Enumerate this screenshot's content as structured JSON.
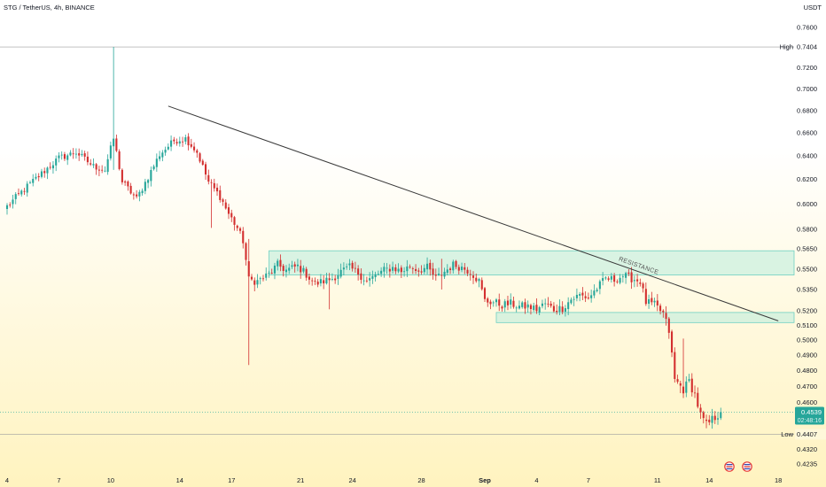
{
  "header": {
    "symbol_line": "STG / TetherUS, 4h, BINANCE",
    "currency": "USDT"
  },
  "colors": {
    "up": "#26a69a",
    "down": "#d32f2f",
    "box_fill": "#b9eddc",
    "box_stroke": "#6fd0c2",
    "trendline": "#3a3a3a",
    "bg_top": "#ffffff",
    "bg_bottom": "#fff3bf"
  },
  "chart_data": {
    "type": "candlestick",
    "y_axis": {
      "min": 0.4235,
      "max": 0.7604,
      "scale": "log",
      "ticks": [
        "0.7600",
        "0.7200",
        "0.7000",
        "0.6800",
        "0.6600",
        "0.6400",
        "0.6200",
        "0.6000",
        "0.5800",
        "0.5650",
        "0.5500",
        "0.5350",
        "0.5200",
        "0.5100",
        "0.5000",
        "0.4900",
        "0.4800",
        "0.4700",
        "0.4600",
        "0.4320",
        "0.4235"
      ]
    },
    "x_axis": {
      "labels": [
        "4",
        "7",
        "10",
        "14",
        "17",
        "21",
        "24",
        "28",
        "Sep",
        "4",
        "7",
        "11",
        "14",
        "18"
      ],
      "label_bars": [
        0,
        18,
        36,
        60,
        78,
        102,
        120,
        144,
        166,
        184,
        202,
        226,
        244,
        268
      ]
    },
    "markers": {
      "high": {
        "label": "High",
        "value": "0.7404"
      },
      "low": {
        "label": "Low",
        "value": "0.4407"
      },
      "last": {
        "value": "0.4539",
        "countdown": "02:48:16"
      }
    },
    "annotation": "RESISTANCE",
    "trendline": {
      "from": {
        "bar": 56,
        "price": 0.684
      },
      "to": {
        "bar": 268,
        "price": 0.513
      }
    },
    "zones": [
      {
        "name": "resistance-zone",
        "from_bar": 91,
        "price_top": 0.5635,
        "price_bottom": 0.5455
      },
      {
        "name": "support-zone",
        "from_bar": 170,
        "price_top": 0.5188,
        "price_bottom": 0.5118
      }
    ],
    "close_path": [
      [
        0,
        0.598
      ],
      [
        6,
        0.612
      ],
      [
        12,
        0.625
      ],
      [
        18,
        0.638
      ],
      [
        24,
        0.643
      ],
      [
        30,
        0.631
      ],
      [
        34,
        0.628
      ],
      [
        37,
        0.655
      ],
      [
        40,
        0.618
      ],
      [
        45,
        0.604
      ],
      [
        49,
        0.622
      ],
      [
        53,
        0.641
      ],
      [
        58,
        0.653
      ],
      [
        62,
        0.655
      ],
      [
        66,
        0.643
      ],
      [
        70,
        0.618
      ],
      [
        74,
        0.606
      ],
      [
        77,
        0.592
      ],
      [
        80,
        0.581
      ],
      [
        82,
        0.571
      ],
      [
        84,
        0.542
      ],
      [
        87,
        0.541
      ],
      [
        91,
        0.546
      ],
      [
        94,
        0.553
      ],
      [
        97,
        0.549
      ],
      [
        101,
        0.552
      ],
      [
        104,
        0.546
      ],
      [
        107,
        0.539
      ],
      [
        110,
        0.541
      ],
      [
        113,
        0.543
      ],
      [
        116,
        0.548
      ],
      [
        119,
        0.551
      ],
      [
        122,
        0.547
      ],
      [
        125,
        0.541
      ],
      [
        128,
        0.545
      ],
      [
        131,
        0.549
      ],
      [
        134,
        0.551
      ],
      [
        137,
        0.548
      ],
      [
        140,
        0.552
      ],
      [
        143,
        0.549
      ],
      [
        146,
        0.551
      ],
      [
        149,
        0.543
      ],
      [
        152,
        0.548
      ],
      [
        155,
        0.553
      ],
      [
        158,
        0.551
      ],
      [
        161,
        0.548
      ],
      [
        164,
        0.541
      ],
      [
        166,
        0.527
      ],
      [
        169,
        0.526
      ],
      [
        172,
        0.524
      ],
      [
        175,
        0.525
      ],
      [
        178,
        0.523
      ],
      [
        181,
        0.523
      ],
      [
        184,
        0.521
      ],
      [
        187,
        0.525
      ],
      [
        190,
        0.521
      ],
      [
        193,
        0.522
      ],
      [
        196,
        0.528
      ],
      [
        199,
        0.531
      ],
      [
        202,
        0.529
      ],
      [
        205,
        0.536
      ],
      [
        208,
        0.543
      ],
      [
        211,
        0.542
      ],
      [
        214,
        0.545
      ],
      [
        217,
        0.543
      ],
      [
        220,
        0.541
      ],
      [
        222,
        0.526
      ],
      [
        225,
        0.524
      ],
      [
        228,
        0.518
      ],
      [
        230,
        0.506
      ],
      [
        232,
        0.474
      ],
      [
        235,
        0.468
      ],
      [
        237,
        0.473
      ],
      [
        239,
        0.465
      ],
      [
        241,
        0.452
      ],
      [
        243,
        0.446
      ],
      [
        246,
        0.451
      ],
      [
        248,
        0.454
      ]
    ],
    "spikes": [
      {
        "bar": 37,
        "high": 0.7404,
        "low": 0.628
      },
      {
        "bar": 71,
        "high": 0.6185,
        "low": 0.581
      },
      {
        "bar": 84,
        "high": 0.5725,
        "low": 0.4835
      },
      {
        "bar": 112,
        "high": 0.547,
        "low": 0.521
      },
      {
        "bar": 151,
        "high": 0.5575,
        "low": 0.535
      },
      {
        "bar": 235,
        "high": 0.501,
        "low": 0.466
      }
    ]
  }
}
